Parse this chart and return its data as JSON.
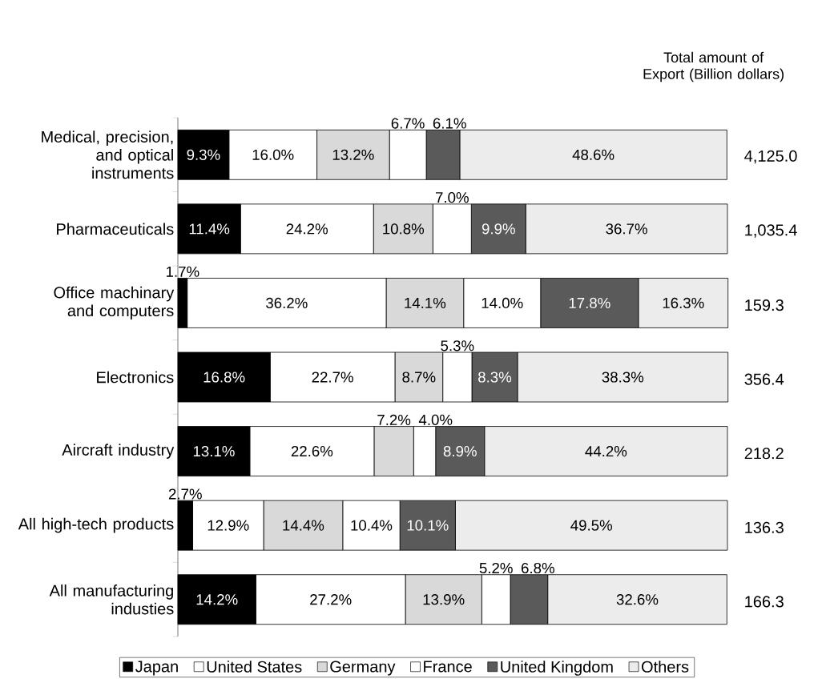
{
  "chart_data": {
    "type": "bar",
    "orientation": "horizontal",
    "stacked": true,
    "categories": [
      "Medical, precision, and optical instruments",
      "Pharmaceuticals",
      "Office machinary and computers",
      "Electronics",
      "Aircraft industry",
      "All high-tech products",
      "All manufacturing industies"
    ],
    "series": [
      {
        "name": "Japan",
        "color": "#000000",
        "values": [
          9.3,
          11.4,
          1.7,
          16.8,
          13.1,
          2.7,
          14.2
        ],
        "value_labels": [
          "9.3%",
          "11.4%",
          "1.7%",
          "16.8%",
          "13.1%",
          "2.7%",
          "14.2%"
        ]
      },
      {
        "name": "United States",
        "color": "#ffffff",
        "values": [
          16.0,
          24.2,
          36.2,
          22.7,
          22.6,
          12.9,
          27.2
        ],
        "value_labels": [
          "16.0%",
          "24.2%",
          "36.2%",
          "22.7%",
          "22.6%",
          "12.9%",
          "27.2%"
        ]
      },
      {
        "name": "Germany",
        "color": "#d9d9d9",
        "values": [
          13.2,
          10.8,
          14.1,
          8.7,
          7.2,
          14.4,
          13.9
        ],
        "value_labels": [
          "13.2%",
          "10.8%",
          "14.1%",
          "8.7%",
          "7.2%",
          "14.4%",
          "13.9%"
        ]
      },
      {
        "name": "France",
        "color": "#ffffff",
        "values": [
          6.7,
          7.0,
          14.0,
          5.3,
          4.0,
          10.4,
          5.2
        ],
        "value_labels": [
          "6.7%",
          "7.0%",
          "14.0%",
          "5.3%",
          "4.0%",
          "10.4%",
          "5.2%"
        ]
      },
      {
        "name": "United Kingdom",
        "color": "#5a5a5a",
        "values": [
          6.1,
          9.9,
          17.8,
          8.3,
          8.9,
          10.1,
          6.8
        ],
        "value_labels": [
          "6.1%",
          "9.9%",
          "17.8%",
          "8.3%",
          "8.9%",
          "10.1%",
          "6.8%"
        ]
      },
      {
        "name": "Others",
        "color": "#ececec",
        "values": [
          48.6,
          36.7,
          16.3,
          38.3,
          44.2,
          49.5,
          32.6
        ],
        "value_labels": [
          "48.6%",
          "36.7%",
          "16.3%",
          "38.3%",
          "44.2%",
          "49.5%",
          "32.6%"
        ]
      }
    ],
    "xlim": [
      0,
      100
    ],
    "tick_labels": "y",
    "annotations": [
      "Total amount of Export (Billion dollars)",
      "4,125.0",
      "1,035.4",
      "159.3",
      "356.4",
      "218.2",
      "136.3",
      "166.3"
    ],
    "legend": "bottom"
  }
}
